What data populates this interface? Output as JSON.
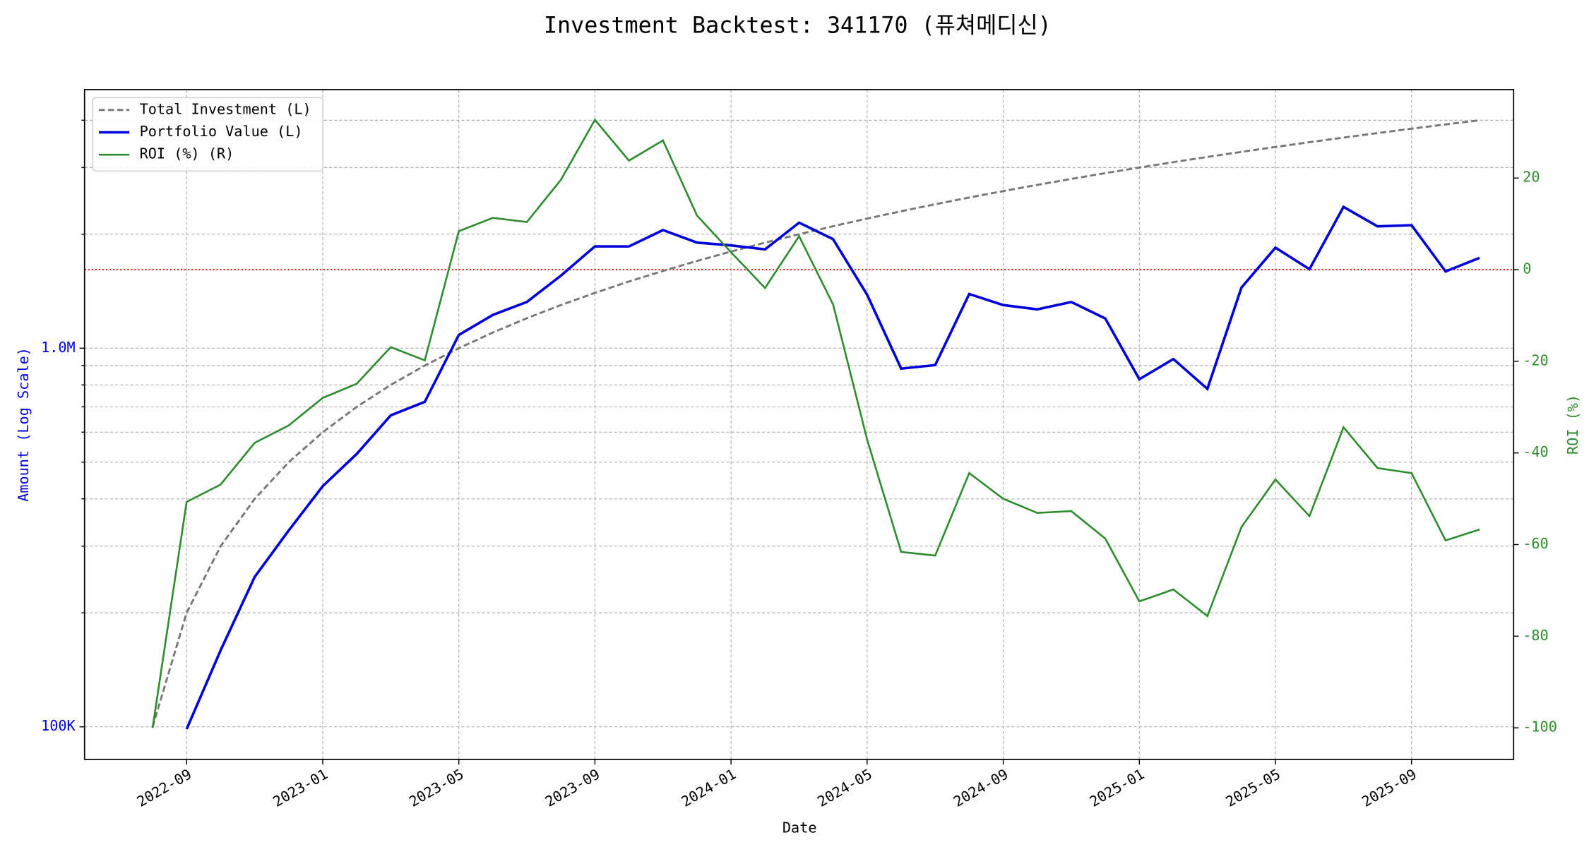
{
  "chart_data": {
    "type": "line",
    "title": "Investment Backtest: 341170 (퓨쳐메디신)",
    "xlabel": "Date",
    "ylabel": "Amount (Log Scale)",
    "y2label": "ROI (%)",
    "log_y": true,
    "grid": true,
    "legend": "upper left",
    "x": [
      "2022-08",
      "2022-09",
      "2022-10",
      "2022-11",
      "2022-12",
      "2023-01",
      "2023-02",
      "2023-03",
      "2023-04",
      "2023-05",
      "2023-06",
      "2023-07",
      "2023-08",
      "2023-09",
      "2023-10",
      "2023-11",
      "2023-12",
      "2024-01",
      "2024-02",
      "2024-03",
      "2024-04",
      "2024-05",
      "2024-06",
      "2024-07",
      "2024-08",
      "2024-09",
      "2024-10",
      "2024-11",
      "2024-12",
      "2025-01",
      "2025-02",
      "2025-03",
      "2025-04",
      "2025-05",
      "2025-06",
      "2025-07",
      "2025-08",
      "2025-09",
      "2025-10",
      "2025-11"
    ],
    "xlim": [
      "2022-06",
      "2025-12"
    ],
    "xticks": [
      "2022-09",
      "2023-01",
      "2023-05",
      "2023-09",
      "2024-01",
      "2024-05",
      "2024-09",
      "2025-01",
      "2025-05",
      "2025-09"
    ],
    "ylim": [
      82000,
      4820000
    ],
    "yticks": [
      {
        "value": 100000,
        "label": "100K"
      },
      {
        "value": 1000000,
        "label": "1.0M"
      }
    ],
    "yminor": [
      200000,
      300000,
      400000,
      500000,
      600000,
      700000,
      800000,
      900000,
      2000000,
      3000000,
      4000000
    ],
    "y2lim": [
      -106.9,
      39.3
    ],
    "y2ticks": [
      -100,
      -80,
      -60,
      -40,
      -20,
      0,
      20
    ],
    "hline": {
      "value": 0,
      "axis": "y2",
      "color": "#dd0000"
    },
    "series": [
      {
        "name": "Total Investment (L)",
        "color": "#777777",
        "linestyle": "dashed",
        "width": 2,
        "values": [
          100000,
          200000,
          300000,
          400000,
          500000,
          600000,
          700000,
          800000,
          900000,
          1000000,
          1100000,
          1200000,
          1300000,
          1400000,
          1500000,
          1600000,
          1700000,
          1800000,
          1900000,
          2000000,
          2100000,
          2200000,
          2300000,
          2400000,
          2500000,
          2600000,
          2700000,
          2800000,
          2900000,
          3000000,
          3100000,
          3200000,
          3300000,
          3400000,
          3500000,
          3600000,
          3700000,
          3800000,
          3900000,
          4000000
        ]
      },
      {
        "name": "Portfolio Value (L)",
        "color": "#0000dd",
        "linestyle": "solid",
        "width": 2.5,
        "values": [
          null,
          98600,
          159300,
          248800,
          330000,
          432000,
          525700,
          664800,
          721800,
          1084000,
          1224300,
          1324800,
          1554800,
          1857800,
          1857000,
          2051200,
          1900600,
          1868400,
          1824000,
          2146000,
          1940400,
          1383800,
          883200,
          902400,
          1390000,
          1300000,
          1266300,
          1324400,
          1197700,
          828000,
          936200,
          780800,
          1445400,
          1842800,
          1617000,
          2361600,
          2097900,
          2112800,
          1595100,
          1732000
        ]
      },
      {
        "name": "ROI (%) (R)",
        "color": "#2e8b2e",
        "linestyle": "solid",
        "width": 1.8,
        "axis": "y2",
        "values": [
          -100,
          -50.7,
          -46.9,
          -37.8,
          -34,
          -28,
          -24.9,
          -16.9,
          -19.8,
          8.4,
          11.3,
          10.4,
          19.6,
          32.7,
          23.8,
          28.2,
          11.8,
          3.8,
          -4,
          7.3,
          -7.6,
          -37.1,
          -61.6,
          -62.4,
          -44.4,
          -50,
          -53.1,
          -52.7,
          -58.7,
          -72.4,
          -69.8,
          -75.6,
          -56.2,
          -45.8,
          -53.8,
          -34.4,
          -43.3,
          -44.4,
          -59.1,
          -56.7
        ]
      }
    ]
  }
}
